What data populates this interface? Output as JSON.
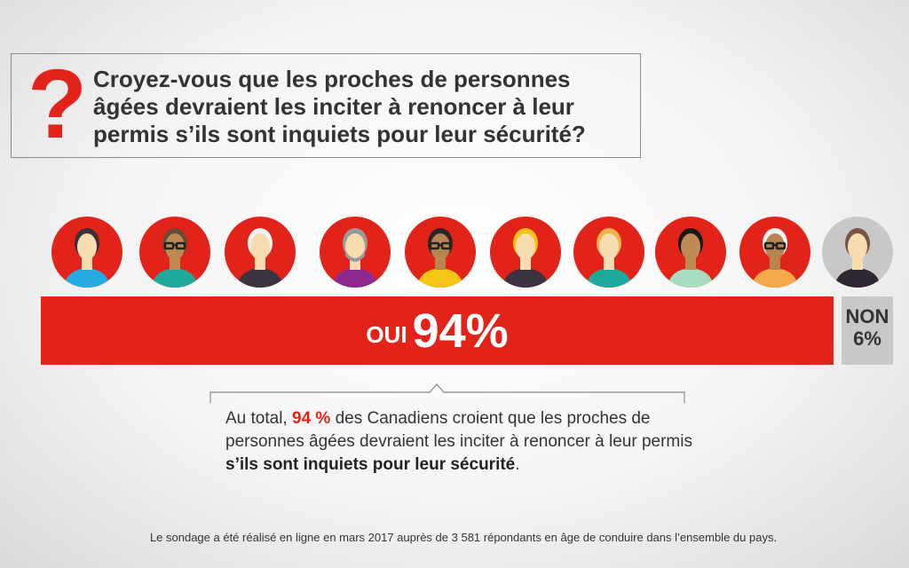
{
  "question": {
    "icon": "question-mark-icon",
    "mark": "?",
    "text": "Croyez-vous que les proches de personnes âgées devraient les inciter à renoncer à leur permis s’ils sont inquiets pour leur sécurité?"
  },
  "colors": {
    "accent": "#e2231a",
    "no": "#c8c8c8"
  },
  "avatars": [
    {
      "bg": "#e2231a",
      "hair": "#3b2f3a",
      "skin": "#f6dcae",
      "shirt": "#27a9e1"
    },
    {
      "bg": "#e2231a",
      "hair": "#6b4a33",
      "skin": "#c08a56",
      "shirt": "#1fa99a",
      "glasses": true
    },
    {
      "bg": "#e2231a",
      "hair": "#f4f4f4",
      "skin": "#f6dcae",
      "shirt": "#3b3340"
    },
    {
      "bg": "#e2231a",
      "hair": "#9a9a9a",
      "skin": "#f6dcae",
      "shirt": "#8e2a8f",
      "beard": true
    },
    {
      "bg": "#e2231a",
      "hair": "#2b2326",
      "skin": "#b8844f",
      "shirt": "#f5c518",
      "glasses": true
    },
    {
      "bg": "#e2231a",
      "hair": "#f7c21a",
      "skin": "#f6dcae",
      "shirt": "#3b3340"
    },
    {
      "bg": "#e2231a",
      "hair": "#f0b24c",
      "skin": "#f6dcae",
      "shirt": "#1fa99a"
    },
    {
      "bg": "#e2231a",
      "hair": "#1a1a1a",
      "skin": "#c08a56",
      "shirt": "#a8dcc0"
    },
    {
      "bg": "#e2231a",
      "hair": "#f4f4f4",
      "skin": "#b8844f",
      "shirt": "#f5a94a",
      "glasses": true
    },
    {
      "bg": "#c8c8c8",
      "hair": "#7a5545",
      "skin": "#f6dcae",
      "shirt": "#2e2733"
    }
  ],
  "chart_data": {
    "type": "bar",
    "stacked": true,
    "categories": [
      "OUI",
      "NON"
    ],
    "values": [
      94,
      6
    ],
    "labels": [
      {
        "name": "OUI",
        "value": "94%"
      },
      {
        "name": "NON",
        "value": "6%"
      }
    ]
  },
  "summary": {
    "pre": "Au total, ",
    "highlight": "94 %",
    "mid": " des Canadiens croient que les proches de personnes âgées devraient les inciter à renoncer à leur permis ",
    "bold": "s’ils sont inquiets pour leur sécurité",
    "post": "."
  },
  "footnote": "Le sondage a été réalisé en ligne en mars 2017 auprès de 3 581 répondants en âge de conduire dans l’ensemble du pays."
}
